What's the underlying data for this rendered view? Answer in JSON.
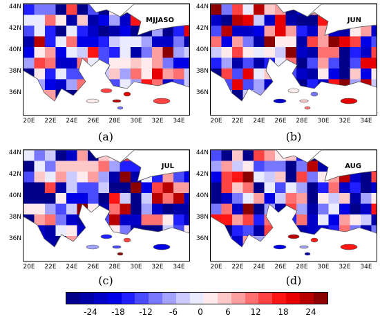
{
  "panels": [
    {
      "id": "a",
      "title": "MJJASO",
      "caption": "(a)"
    },
    {
      "id": "b",
      "title": "JUN",
      "caption": "(b)"
    },
    {
      "id": "c",
      "title": "JUL",
      "caption": "(c)"
    },
    {
      "id": "d",
      "title": "AUG",
      "caption": "(d)"
    }
  ],
  "lat_labels": [
    "44N",
    "42N",
    "40N",
    "38N",
    "36N"
  ],
  "lon_labels": [
    "20E",
    "22E",
    "24E",
    "26E",
    "28E",
    "30E",
    "32E",
    "34E"
  ],
  "colorbar": {
    "labels": [
      "-24",
      "-18",
      "-12",
      "-6",
      "0",
      "6",
      "12",
      "18",
      "24"
    ],
    "colors": [
      "#00008b",
      "#0000a8",
      "#0000c8",
      "#0000e6",
      "#1f1fff",
      "#4a4aff",
      "#7777ff",
      "#a3a3ff",
      "#cbcbff",
      "#ebebff",
      "#ffebeb",
      "#ffc8c8",
      "#ff9e9e",
      "#ff7070",
      "#ff4242",
      "#ff1414",
      "#e60000",
      "#b80000",
      "#8b0000"
    ]
  }
}
